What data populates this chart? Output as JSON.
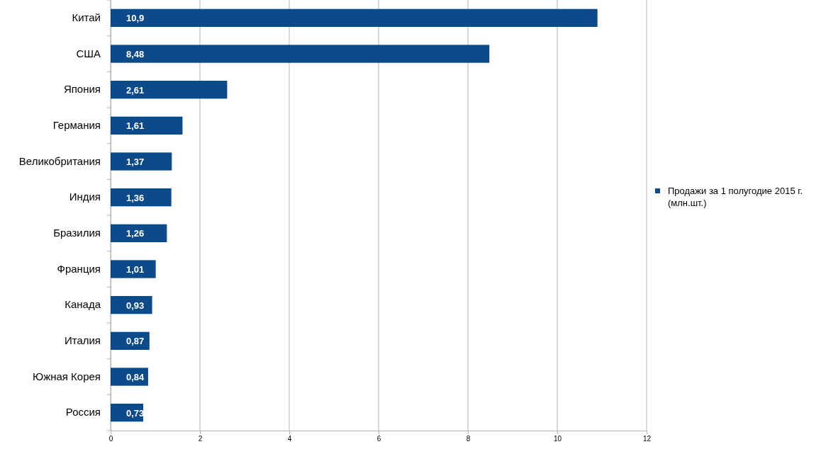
{
  "chart_data": {
    "type": "bar",
    "orientation": "horizontal",
    "categories": [
      "Китай",
      "США",
      "Япония",
      "Германия",
      "Великобритания",
      "Индия",
      "Бразилия",
      "Франция",
      "Канада",
      "Италия",
      "Южная Корея",
      "Россия"
    ],
    "series": [
      {
        "name": "Продажи за 1 полугодие 2015 г. (млн.шт.)",
        "color": "#0d4a8a",
        "values": [
          10.9,
          8.48,
          2.61,
          1.61,
          1.37,
          1.36,
          1.26,
          1.01,
          0.93,
          0.87,
          0.84,
          0.73
        ],
        "value_labels": [
          "10,9",
          "8,48",
          "2,61",
          "1,61",
          "1,37",
          "1,36",
          "1,26",
          "1,01",
          "0,93",
          "0,87",
          "0,84",
          "0,73"
        ]
      }
    ],
    "xlim": [
      0,
      12
    ],
    "xticks": [
      0,
      2,
      4,
      6,
      8,
      10,
      12
    ],
    "grid": "x",
    "legend": "right"
  }
}
